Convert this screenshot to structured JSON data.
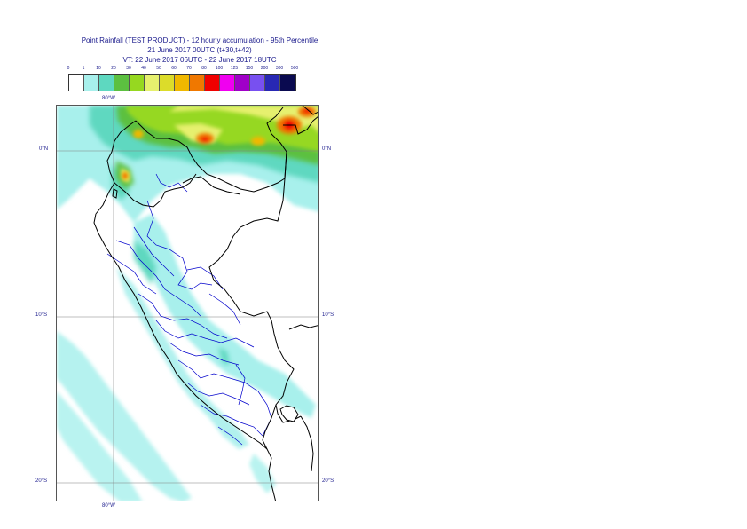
{
  "title": {
    "line1": "Point Rainfall (TEST PRODUCT) - 12 hourly accumulation - 95th Percentile",
    "line2": "21 June 2017 00UTC (t+30,t+42)",
    "line3": "VT: 22 June 2017 06UTC - 22 June 2017 18UTC"
  },
  "legend": {
    "ticks": [
      "0",
      "1",
      "10",
      "20",
      "30",
      "40",
      "50",
      "60",
      "70",
      "80",
      "100",
      "125",
      "150",
      "200",
      "300",
      "500"
    ],
    "colors": [
      "#ffffff",
      "#a8f0ec",
      "#5ed8c0",
      "#5cc040",
      "#96d820",
      "#e6f06e",
      "#dcdc2a",
      "#f0b800",
      "#f07800",
      "#f00000",
      "#f000f0",
      "#a000c8",
      "#7850f0",
      "#2828b4",
      "#0a0a50"
    ]
  },
  "axes": {
    "lon_top": "80°W",
    "lon_bottom": "80°W",
    "lat_left": [
      "0°N",
      "10°S",
      "20°S"
    ],
    "lat_right": [
      "0°N",
      "10°S",
      "20°S"
    ]
  },
  "colors": {
    "grid": "#808080",
    "border_country": "#000000",
    "border_region": "#0000cc",
    "text": "#1a1a8c"
  }
}
